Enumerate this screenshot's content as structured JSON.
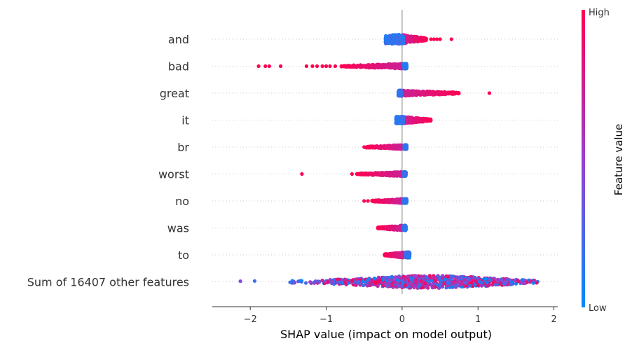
{
  "chart_data": {
    "type": "scatter",
    "subtype": "shap-beeswarm",
    "title": "",
    "xlabel": "SHAP value (impact on model output)",
    "xlim": [
      -2.5,
      2.05
    ],
    "xticks": [
      -2,
      -1,
      0,
      1,
      2
    ],
    "xtick_labels": [
      "−2",
      "−1",
      "0",
      "1",
      "2"
    ],
    "colorbar": {
      "title": "Feature value",
      "high_label": "High",
      "low_label": "Low",
      "low_color": "#008bfb",
      "high_color": "#ff0051"
    },
    "colors": {
      "low": "#008bfb",
      "mid": "#9b3fd0",
      "high": "#ff0051",
      "zero_line": "#999999",
      "grid": "#cccccc"
    },
    "features": [
      {
        "name": "and",
        "low_range": [
          -0.22,
          0.02
        ],
        "high_range": [
          0.0,
          0.32
        ],
        "outliers": [
          0.38,
          0.42,
          0.46,
          0.5,
          0.65
        ],
        "outlier_color": "high",
        "width": 13
      },
      {
        "name": "bad",
        "low_range": [
          0.02,
          0.06
        ],
        "high_range": [
          -0.8,
          0.0
        ],
        "outliers": [
          -1.89,
          -1.8,
          -1.75,
          -1.6,
          -1.26,
          -1.18,
          -1.12,
          -1.05,
          -1.0,
          -0.95,
          -0.88
        ],
        "outlier_color": "high",
        "width": 7
      },
      {
        "name": "great",
        "low_range": [
          -0.05,
          -0.01
        ],
        "high_range": [
          0.0,
          0.75
        ],
        "outliers": [
          1.15
        ],
        "outlier_color": "high",
        "width": 8
      },
      {
        "name": "it",
        "low_range": [
          -0.08,
          0.02
        ],
        "high_range": [
          0.0,
          0.38
        ],
        "outliers": [],
        "outlier_color": "high",
        "width": 10
      },
      {
        "name": "br",
        "low_range": [
          0.03,
          0.06
        ],
        "high_range": [
          -0.48,
          0.0
        ],
        "outliers": [
          -0.5
        ],
        "outlier_color": "high",
        "width": 6
      },
      {
        "name": "worst",
        "low_range": [
          0.02,
          0.05
        ],
        "high_range": [
          -0.6,
          0.0
        ],
        "outliers": [
          -1.32,
          -0.66
        ],
        "outlier_color": "high",
        "width": 6
      },
      {
        "name": "no",
        "low_range": [
          0.02,
          0.06
        ],
        "high_range": [
          -0.4,
          0.0
        ],
        "outliers": [
          -0.5,
          -0.45
        ],
        "outlier_color": "high",
        "width": 6
      },
      {
        "name": "was",
        "low_range": [
          0.02,
          0.05
        ],
        "high_range": [
          -0.32,
          0.0
        ],
        "outliers": [],
        "outlier_color": "high",
        "width": 7
      },
      {
        "name": "to",
        "low_range": [
          0.05,
          0.1
        ],
        "high_range": [
          -0.24,
          0.02
        ],
        "outliers": [],
        "outlier_color": "high",
        "width": 8
      },
      {
        "name": "Sum of 16407 other features",
        "low_range": [
          -2.28,
          1.82
        ],
        "high_range": [
          -2.28,
          1.82
        ],
        "outliers": [],
        "outlier_color": "mixed",
        "width": 18
      }
    ]
  }
}
